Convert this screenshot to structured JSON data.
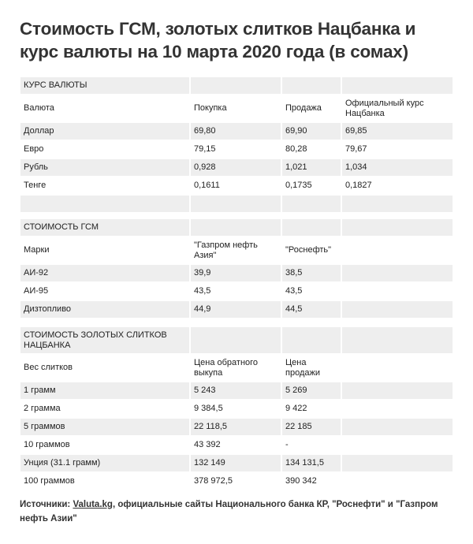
{
  "title": "Стоимость ГСМ, золотых слитков Нацбанка и курс валюты на 10 марта 2020 года (в сомах)",
  "tables": [
    {
      "section": "КУРС ВАЛЮТЫ",
      "columns": [
        "Валюта",
        "Покупка",
        "Продажа",
        "Официальный курс Нацбанка"
      ],
      "rows": [
        [
          "Доллар",
          "69,80",
          "69,90",
          "69,85"
        ],
        [
          "Евро",
          "79,15",
          "80,28",
          "79,67"
        ],
        [
          "Рубль",
          "0,928",
          "1,021",
          "1,034"
        ],
        [
          "Тенге",
          "0,1611",
          "0,1735",
          "0,1827"
        ],
        [
          "",
          "",
          "",
          ""
        ]
      ]
    },
    {
      "section": "СТОИМОСТЬ ГСМ",
      "columns": [
        "Марки",
        "\"Газпром нефть Азия\"",
        "\"Роснефть\"",
        ""
      ],
      "rows": [
        [
          "АИ-92",
          "39,9",
          "38,5",
          ""
        ],
        [
          "АИ-95",
          "43,5",
          "43,5",
          ""
        ],
        [
          "Дизтопливо",
          "44,9",
          "44,5",
          ""
        ]
      ]
    },
    {
      "section": "СТОИМОСТЬ ЗОЛОТЫХ СЛИТКОВ НАЦБАНКА",
      "columns": [
        "Вес слитков",
        "Цена обратного выкупа",
        "Цена продажи",
        ""
      ],
      "rows": [
        [
          "1 грамм",
          "5 243",
          "5 269",
          ""
        ],
        [
          "2 грамма",
          "9 384,5",
          "9 422",
          ""
        ],
        [
          "5 граммов",
          "22 118,5",
          "22 185",
          ""
        ],
        [
          "10 граммов",
          "43 392",
          "-",
          ""
        ],
        [
          "Унция (31.1 грамм)",
          "132 149",
          "134 131,5",
          ""
        ],
        [
          "100 граммов",
          "378 972,5",
          "390 342",
          ""
        ]
      ]
    }
  ],
  "sources": {
    "prefix": "Источники: ",
    "link": "Valuta.kg",
    "suffix": ", официальные сайты Национального банка КР, \"Роснефти\" и \"Газпром нефть Азии\""
  }
}
